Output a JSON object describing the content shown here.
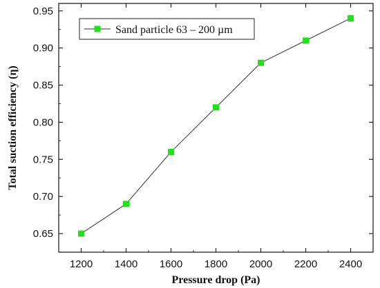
{
  "chart_data": {
    "type": "line",
    "title": "",
    "xlabel": "Pressure drop (Pa)",
    "ylabel": "Total suction efficiency (η)",
    "xlim": [
      1100,
      2500
    ],
    "ylim": [
      0.625,
      0.96
    ],
    "x_ticks": [
      1200,
      1400,
      1600,
      1800,
      2000,
      2200,
      2400
    ],
    "x_tick_labels": [
      "1200",
      "1400",
      "1600",
      "1800",
      "2000",
      "2200",
      "2400"
    ],
    "y_ticks": [
      0.65,
      0.7,
      0.75,
      0.8,
      0.85,
      0.9,
      0.95
    ],
    "y_tick_labels": [
      "0.65",
      "0.70",
      "0.75",
      "0.80",
      "0.85",
      "0.90",
      "0.95"
    ],
    "grid": false,
    "legend_position": "top-left",
    "series": [
      {
        "name": "Sand particle 63 – 200 µm",
        "x": [
          1200,
          1400,
          1600,
          1800,
          2000,
          2200,
          2400
        ],
        "values": [
          0.65,
          0.69,
          0.76,
          0.82,
          0.88,
          0.91,
          0.94
        ],
        "marker": "square",
        "marker_color": "#22e01a",
        "line_color": "#333333"
      }
    ]
  }
}
